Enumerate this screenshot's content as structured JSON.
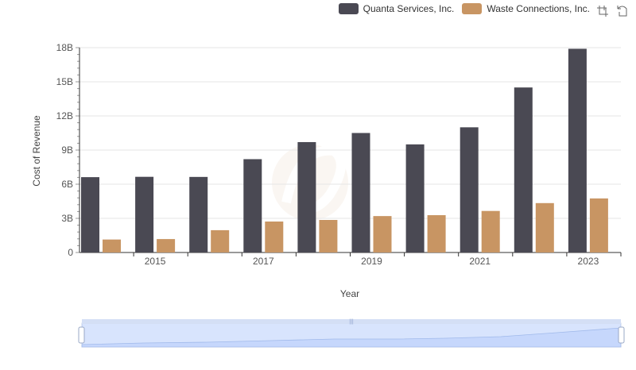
{
  "chart_data": {
    "type": "bar",
    "categories": [
      "2014",
      "2015",
      "2016",
      "2017",
      "2018",
      "2019",
      "2020",
      "2021",
      "2022",
      "2023"
    ],
    "x_tick_labels": [
      "2015",
      "2017",
      "2019",
      "2021",
      "2023"
    ],
    "y_tick_labels": [
      "0",
      "3B",
      "6B",
      "9B",
      "12B",
      "15B",
      "18B"
    ],
    "series": [
      {
        "name": "Quanta Services, Inc.",
        "color": "#4a4953",
        "values": [
          6.62,
          6.65,
          6.64,
          8.2,
          9.7,
          10.5,
          9.5,
          11.0,
          14.5,
          17.9
        ]
      },
      {
        "name": "Waste Connections, Inc.",
        "color": "#c89563",
        "values": [
          1.14,
          1.18,
          1.96,
          2.72,
          2.86,
          3.2,
          3.28,
          3.65,
          4.34,
          4.75
        ]
      }
    ],
    "xlabel": "Year",
    "ylabel": "Cost of Revenue",
    "ylim": [
      0,
      18
    ],
    "y_unit": "billions",
    "grid": true,
    "legend_position": "top-right",
    "has_data_zoom": true,
    "has_toolbox": true
  },
  "legend": {
    "items": [
      {
        "label": "Quanta Services, Inc.",
        "color": "#4a4953"
      },
      {
        "label": "Waste Connections, Inc.",
        "color": "#c89563"
      }
    ]
  },
  "toolbox": {
    "icons": [
      "zoom-icon",
      "reset-zoom-icon"
    ]
  }
}
